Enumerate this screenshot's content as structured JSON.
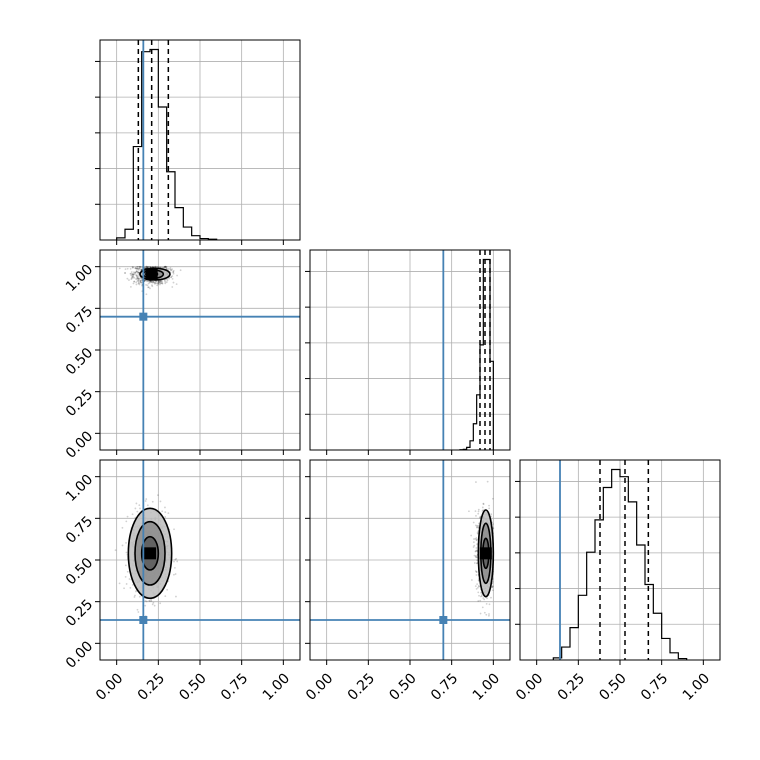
{
  "chart_data": {
    "type": "corner",
    "parameters": 3,
    "tick_labels": [
      "0.00",
      "0.25",
      "0.50",
      "0.75",
      "1.00"
    ],
    "axis_range": [
      -0.1,
      1.1
    ],
    "grid": true,
    "colors": {
      "truth": "#4682b4",
      "hist": "#000000",
      "grid": "#b0b0b0"
    },
    "truths": [
      0.16,
      0.7,
      0.14
    ],
    "quantile_lines": [
      [
        0.13,
        0.21,
        0.31
      ],
      [
        0.92,
        0.95,
        0.98
      ],
      [
        0.38,
        0.53,
        0.67
      ]
    ],
    "histograms": [
      {
        "bin_edges": [
          0.0,
          0.05,
          0.1,
          0.15,
          0.2,
          0.25,
          0.3,
          0.35,
          0.4,
          0.45,
          0.5,
          0.55,
          0.6
        ],
        "counts": [
          3,
          15,
          130,
          262,
          265,
          185,
          95,
          45,
          18,
          6,
          2,
          1
        ]
      },
      {
        "bin_edges": [
          0.8,
          0.82,
          0.84,
          0.86,
          0.88,
          0.9,
          0.92,
          0.94,
          0.96,
          0.98,
          1.0
        ],
        "counts": [
          1,
          2,
          8,
          28,
          80,
          168,
          320,
          580,
          580,
          270
        ]
      },
      {
        "bin_edges": [
          0.1,
          0.15,
          0.2,
          0.25,
          0.3,
          0.35,
          0.4,
          0.45,
          0.5,
          0.55,
          0.6,
          0.65,
          0.7,
          0.75,
          0.8,
          0.85,
          0.9
        ],
        "counts": [
          3,
          18,
          45,
          90,
          150,
          195,
          240,
          265,
          255,
          220,
          160,
          105,
          65,
          30,
          10,
          2
        ]
      }
    ],
    "scatter_panels": [
      {
        "row": 1,
        "col": 0,
        "center": [
          0.21,
          0.955
        ],
        "sigma": [
          0.055,
          0.03
        ],
        "shape": "ellipse",
        "contours": [
          {
            "rx": 0.09,
            "ry": 0.035,
            "dx": 0.02
          },
          {
            "rx": 0.06,
            "ry": 0.025,
            "dx": 0.01
          },
          {
            "rx": 0.035,
            "ry": 0.015,
            "dx": 0.0
          }
        ]
      },
      {
        "row": 2,
        "col": 0,
        "center": [
          0.2,
          0.54
        ],
        "sigma": [
          0.055,
          0.12
        ],
        "shape": "ellipse",
        "contours": [
          {
            "rx": 0.13,
            "ry": 0.27,
            "dx": 0.0
          },
          {
            "rx": 0.09,
            "ry": 0.19,
            "dx": 0.0
          },
          {
            "rx": 0.05,
            "ry": 0.1,
            "dx": 0.0
          }
        ]
      },
      {
        "row": 2,
        "col": 1,
        "center": [
          0.955,
          0.54
        ],
        "sigma": [
          0.03,
          0.12
        ],
        "shape": "ellipse",
        "contours": [
          {
            "rx": 0.045,
            "ry": 0.26,
            "dx": 0.0
          },
          {
            "rx": 0.03,
            "ry": 0.18,
            "dx": 0.0
          },
          {
            "rx": 0.018,
            "ry": 0.09,
            "dx": 0.0
          }
        ]
      }
    ]
  }
}
